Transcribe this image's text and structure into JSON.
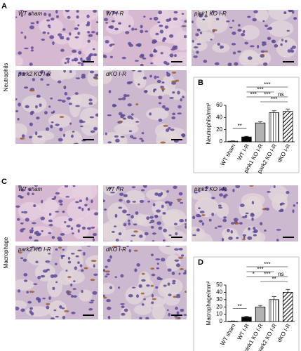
{
  "panels": [
    {
      "label": "A",
      "row_label": "Neutrophils",
      "images": [
        "WT sham",
        "WT I-R",
        "pink1 KO I-R",
        "park2 KO I-R",
        "dKO I-R"
      ]
    },
    {
      "label": "C",
      "row_label": "Macrophage",
      "images": [
        "WT sham",
        "WT I-R",
        "pink1 KO I-R",
        "park2 KO I-R",
        "dKO I-R"
      ]
    }
  ],
  "chart_data": [
    {
      "type": "bar",
      "panel_label": "B",
      "y_label": "Neutrophils/mm²",
      "categories": [
        "WT sham",
        "WT I-R",
        "pink1 KO I-R",
        "park2 KO I-R",
        "dKO I-R"
      ],
      "values": [
        1,
        8,
        31,
        48,
        50
      ],
      "errors": [
        0.5,
        1,
        2,
        3,
        4
      ],
      "colors": [
        "#ffffff",
        "#000000",
        "#ffffff",
        "#ffffff",
        "#ffffff"
      ],
      "hatches": [
        "solid",
        "solid",
        "dense-vertical",
        "vertical",
        "diagonal"
      ],
      "ylim": [
        0,
        60
      ],
      "yticks": [
        0,
        20,
        40,
        60
      ],
      "significance": [
        {
          "from": "WT sham",
          "to": "WT I-R",
          "label": "**"
        },
        {
          "from": "WT I-R",
          "to": "dKO I-R",
          "label": "***"
        },
        {
          "from": "WT I-R",
          "to": "park2 KO I-R",
          "label": "***"
        },
        {
          "from": "WT I-R",
          "to": "pink1 KO I-R",
          "label": "***"
        },
        {
          "from": "pink1 KO I-R",
          "to": "park2 KO I-R",
          "label": "***"
        },
        {
          "from": "park2 KO I-R",
          "to": "dKO I-R",
          "label": "ns"
        },
        {
          "from": "pink1 KO I-R",
          "to": "dKO I-R",
          "label": "***"
        }
      ]
    },
    {
      "type": "bar",
      "panel_label": "D",
      "y_label": "Macrophage/mm²",
      "categories": [
        "WT sham",
        "WT I-R",
        "pink1 KO I-R",
        "park2 KO I-R",
        "dKO I-R"
      ],
      "values": [
        0.5,
        6,
        20,
        30,
        40
      ],
      "errors": [
        0.3,
        1,
        2,
        4,
        4
      ],
      "colors": [
        "#ffffff",
        "#000000",
        "#ffffff",
        "#ffffff",
        "#ffffff"
      ],
      "hatches": [
        "solid",
        "solid",
        "dense-vertical",
        "vertical",
        "diagonal"
      ],
      "ylim": [
        0,
        50
      ],
      "yticks": [
        0,
        10,
        20,
        30,
        40,
        50
      ],
      "significance": [
        {
          "from": "WT sham",
          "to": "WT I-R",
          "label": "**"
        },
        {
          "from": "WT I-R",
          "to": "dKO I-R",
          "label": "***"
        },
        {
          "from": "WT I-R",
          "to": "park2 KO I-R",
          "label": "***"
        },
        {
          "from": "WT I-R",
          "to": "pink1 KO I-R",
          "label": "*"
        },
        {
          "from": "pink1 KO I-R",
          "to": "park2 KO I-R",
          "label": "***"
        },
        {
          "from": "park2 KO I-R",
          "to": "dKO I-R",
          "label": "ns"
        },
        {
          "from": "pink1 KO I-R",
          "to": "dKO I-R",
          "label": "**"
        }
      ]
    }
  ]
}
